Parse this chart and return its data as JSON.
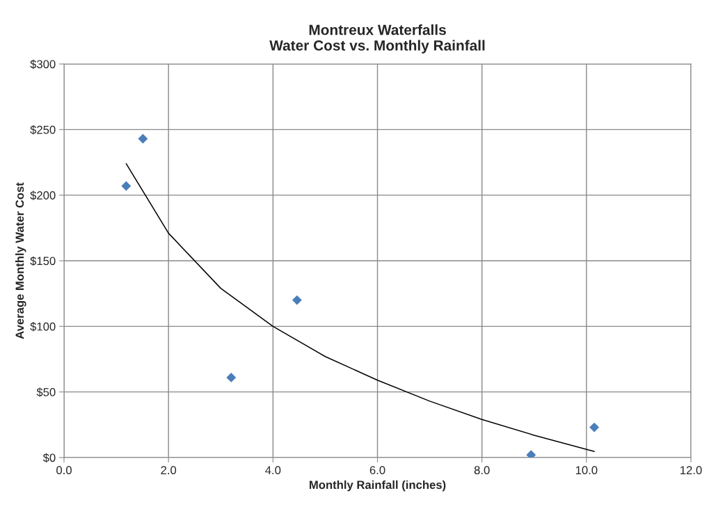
{
  "chart_data": {
    "type": "scatter",
    "title": "Montreux Waterfalls\nWater Cost vs. Monthly Rainfall",
    "xlabel": "Monthly Rainfall (inches)",
    "ylabel": "Average Monthly Water Cost",
    "series": [
      {
        "color": "#4a7ebb",
        "marker": "diamond",
        "x": [
          1.19,
          1.51,
          3.2,
          4.46,
          8.94,
          10.15
        ],
        "values": [
          207,
          243,
          61,
          120,
          2,
          23
        ]
      },
      {
        "type": "line",
        "color": "#000000",
        "marker": "none",
        "line_style": "solid",
        "x": [
          1.19,
          2,
          3,
          4,
          5,
          6,
          7,
          8,
          9,
          10.15
        ],
        "values": [
          224,
          171,
          129,
          100,
          77,
          59,
          43,
          29,
          17,
          4.6
        ]
      }
    ],
    "xlim": [
      0,
      12
    ],
    "xticks": [
      {
        "value": 0,
        "label": "0.0"
      },
      {
        "value": 2,
        "label": "2.0"
      },
      {
        "value": 4,
        "label": "4.0"
      },
      {
        "value": 6,
        "label": "6.0"
      },
      {
        "value": 8,
        "label": "8.0"
      },
      {
        "value": 10,
        "label": "10.0"
      },
      {
        "value": 12,
        "label": "12.0"
      }
    ],
    "ylim": [
      0,
      300
    ],
    "yticks": [
      {
        "value": 0,
        "label": "$0"
      },
      {
        "value": 50,
        "label": "$50"
      },
      {
        "value": 100,
        "label": "$100"
      },
      {
        "value": 150,
        "label": "$150"
      },
      {
        "value": 200,
        "label": "$200"
      },
      {
        "value": 250,
        "label": "$250"
      },
      {
        "value": 300,
        "label": "$300"
      }
    ],
    "grid": true,
    "legend": false
  }
}
